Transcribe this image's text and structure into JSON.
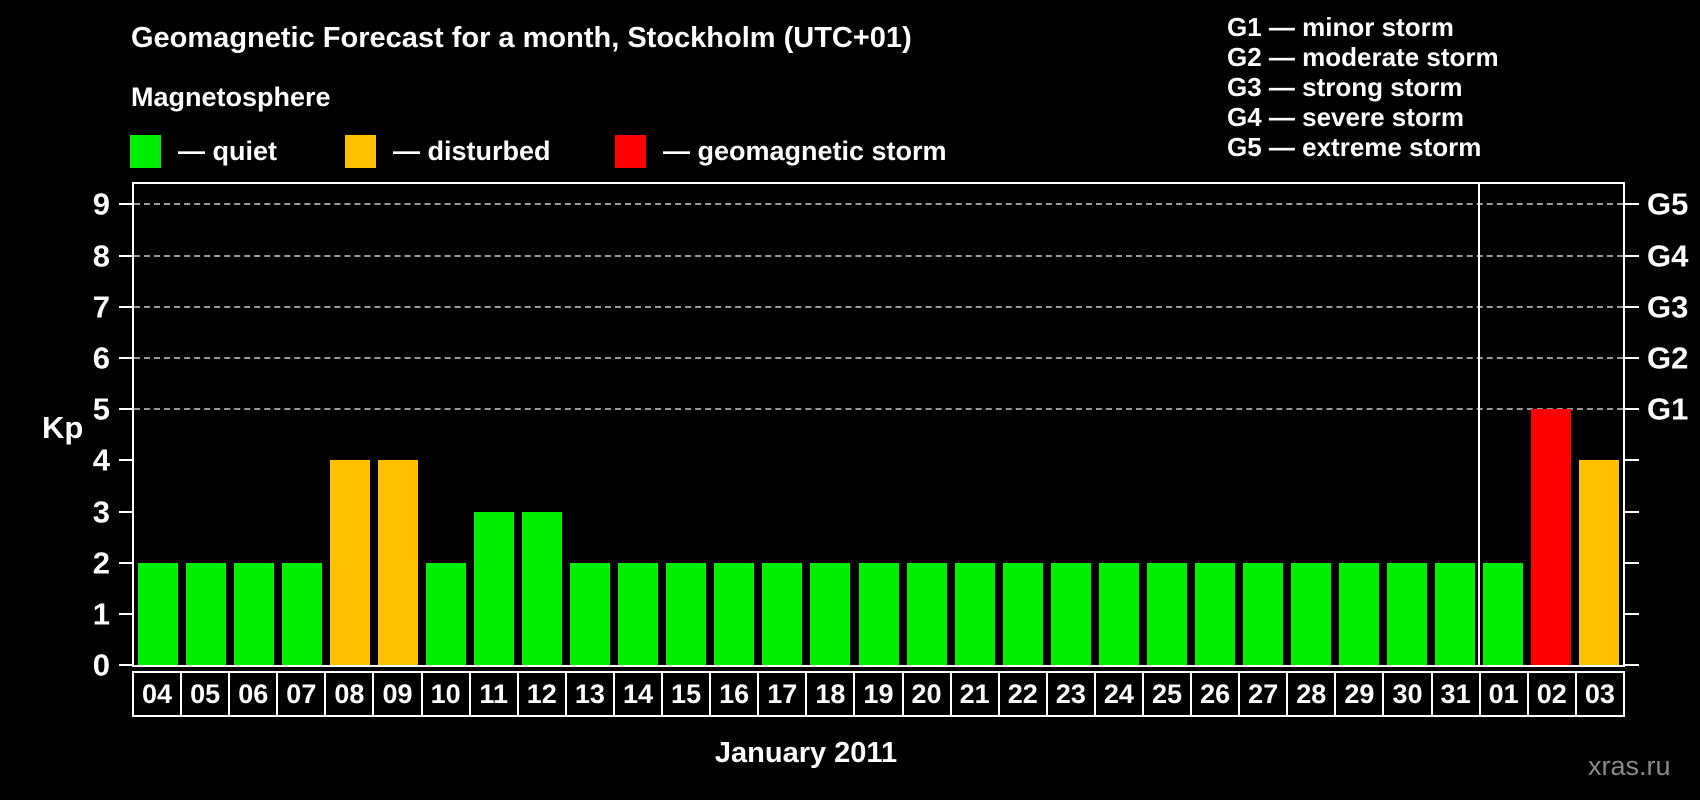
{
  "header": {
    "title": "Geomagnetic Forecast for a month, Stockholm (UTC+01)",
    "subtitle": "Magnetosphere",
    "legend": [
      {
        "key": "quiet",
        "label": "— quiet",
        "color": "#00ee00"
      },
      {
        "key": "disturbed",
        "label": "— disturbed",
        "color": "#ffc000"
      },
      {
        "key": "storm",
        "label": "— geomagnetic storm",
        "color": "#ff0000"
      }
    ],
    "g_legend": [
      "G1 — minor storm",
      "G2 — moderate storm",
      "G3 — strong storm",
      "G4 — severe storm",
      "G5 — extreme storm"
    ]
  },
  "chart_data": {
    "type": "bar",
    "title": "Geomagnetic Forecast for a month, Stockholm (UTC+01)",
    "categories": [
      "04",
      "05",
      "06",
      "07",
      "08",
      "09",
      "10",
      "11",
      "12",
      "13",
      "14",
      "15",
      "16",
      "17",
      "18",
      "19",
      "20",
      "21",
      "22",
      "23",
      "24",
      "25",
      "26",
      "27",
      "28",
      "29",
      "30",
      "31",
      "01",
      "02",
      "03"
    ],
    "values": [
      2,
      2,
      2,
      2,
      4,
      4,
      2,
      3,
      3,
      2,
      2,
      2,
      2,
      2,
      2,
      2,
      2,
      2,
      2,
      2,
      2,
      2,
      2,
      2,
      2,
      2,
      2,
      2,
      2,
      5,
      4
    ],
    "statuses": [
      "quiet",
      "quiet",
      "quiet",
      "quiet",
      "disturbed",
      "disturbed",
      "quiet",
      "quiet",
      "quiet",
      "quiet",
      "quiet",
      "quiet",
      "quiet",
      "quiet",
      "quiet",
      "quiet",
      "quiet",
      "quiet",
      "quiet",
      "quiet",
      "quiet",
      "quiet",
      "quiet",
      "quiet",
      "quiet",
      "quiet",
      "quiet",
      "quiet",
      "quiet",
      "storm",
      "disturbed"
    ],
    "status_colors": {
      "quiet": "#00ee00",
      "disturbed": "#ffc000",
      "storm": "#ff0000"
    },
    "ylabel": "Kp",
    "xlabel": "January 2011",
    "ylim": [
      0,
      9.4
    ],
    "y_ticks": [
      0,
      1,
      2,
      3,
      4,
      5,
      6,
      7,
      8,
      9
    ],
    "grid_levels": [
      5,
      6,
      7,
      8,
      9
    ],
    "grid_on": true,
    "right_axis_labels": [
      {
        "kp": 5,
        "label": "G1"
      },
      {
        "kp": 6,
        "label": "G2"
      },
      {
        "kp": 7,
        "label": "G3"
      },
      {
        "kp": 8,
        "label": "G4"
      },
      {
        "kp": 9,
        "label": "G5"
      }
    ],
    "month_separator_after_index": 27,
    "legend_position": "top"
  },
  "footer": {
    "xlabel": "January 2011",
    "watermark": "xras.ru"
  },
  "colors": {
    "background": "#000000",
    "axis": "#ffffff",
    "gridline": "#999999",
    "watermark": "#8a8a8a"
  }
}
